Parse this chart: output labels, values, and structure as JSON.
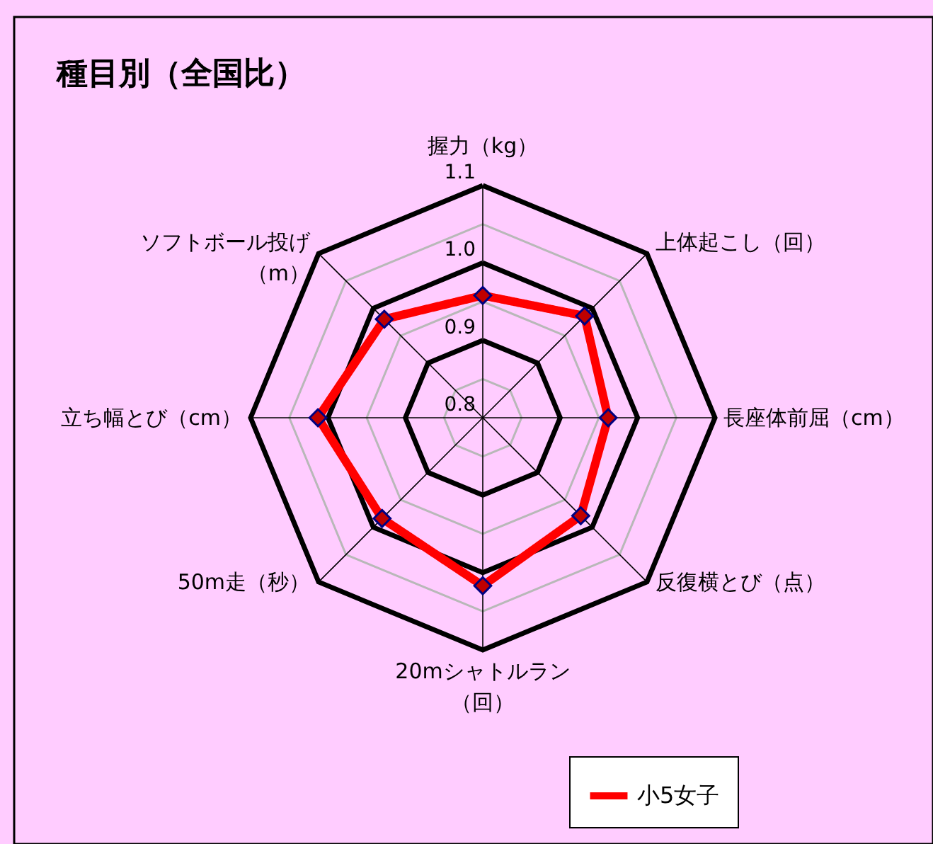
{
  "chart_data": {
    "type": "radar",
    "title": "種目別（全国比）",
    "categories": [
      "握力（kg）",
      "上体起こし（回）",
      "長座体前屈（cm）",
      "反復横とび（点）",
      "20mシャトルラン（回）",
      "50m走（秒）",
      "立ち幅とび（cm）",
      "ソフトボール投げ（m）"
    ],
    "series": [
      {
        "name": "小5女子",
        "color": "#ff0000",
        "values": [
          0.958,
          0.986,
          0.962,
          0.979,
          1.017,
          0.984,
          1.013,
          0.98
        ]
      }
    ],
    "ylim": [
      0.8,
      1.1
    ],
    "yticks": [
      0.8,
      0.9,
      {
        "value": 1,
        "label": "1.0"
      },
      1.1
    ],
    "grid": true,
    "legend": "bottom right",
    "marker": "diamond",
    "line_style": "solid"
  }
}
